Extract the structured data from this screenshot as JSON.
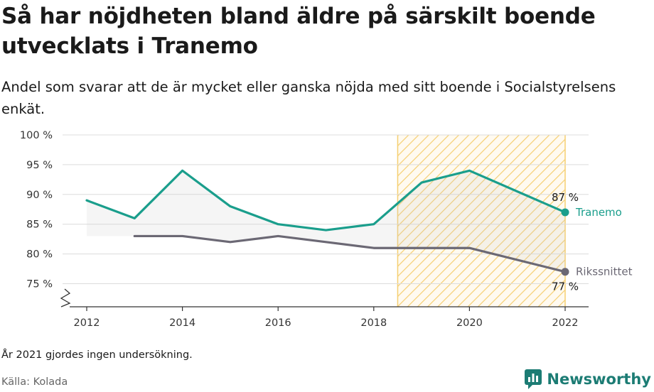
{
  "title": "Så har nöjdheten bland äldre på särskilt boende utvecklats i Tranemo",
  "subtitle": "Andel som svarar att de är mycket eller ganska nöjda med sitt boende i Socialstyrelsens enkät.",
  "note": "År 2021 gjordes ingen undersökning.",
  "source": "Källa: Kolada",
  "brand": {
    "name": "Newsworthy",
    "icon": "newsworthy-logo-icon",
    "color": "#1c7c74"
  },
  "chart_data": {
    "type": "line",
    "title": "Så har nöjdheten bland äldre på särskilt boende utvecklats i Tranemo",
    "xlabel": "",
    "ylabel": "",
    "xlim": [
      2011.5,
      2022.5
    ],
    "ylim": [
      71,
      100
    ],
    "x_ticks": [
      {
        "value": 2012,
        "label": "2012"
      },
      {
        "value": 2014,
        "label": "2014"
      },
      {
        "value": 2016,
        "label": "2016"
      },
      {
        "value": 2018,
        "label": "2018"
      },
      {
        "value": 2020,
        "label": "2020"
      },
      {
        "value": 2022,
        "label": "2022"
      }
    ],
    "y_ticks": [
      {
        "value": 75,
        "label": "75 %"
      },
      {
        "value": 80,
        "label": "80 %"
      },
      {
        "value": 85,
        "label": "85 %"
      },
      {
        "value": 90,
        "label": "90 %"
      },
      {
        "value": 95,
        "label": "95 %"
      },
      {
        "value": 100,
        "label": "100 %"
      }
    ],
    "grid": true,
    "highlight_range": [
      2018.5,
      2022
    ],
    "series": [
      {
        "name": "Tranemo",
        "color": "#1a9e8c",
        "points": [
          [
            2012,
            89
          ],
          [
            2013,
            86
          ],
          [
            2014,
            94
          ],
          [
            2015,
            88
          ],
          [
            2016,
            85
          ],
          [
            2017,
            84
          ],
          [
            2018,
            85
          ],
          [
            2019,
            92
          ],
          [
            2020,
            94
          ],
          [
            2022,
            87
          ]
        ],
        "end_label": "87 %"
      },
      {
        "name": "Rikssnittet",
        "color": "#6b6874",
        "points": [
          [
            2013,
            83
          ],
          [
            2014,
            83
          ],
          [
            2015,
            82
          ],
          [
            2016,
            83
          ],
          [
            2017,
            82
          ],
          [
            2018,
            81
          ],
          [
            2019,
            81
          ],
          [
            2020,
            81
          ],
          [
            2022,
            77
          ]
        ],
        "end_label": "77 %"
      }
    ]
  }
}
